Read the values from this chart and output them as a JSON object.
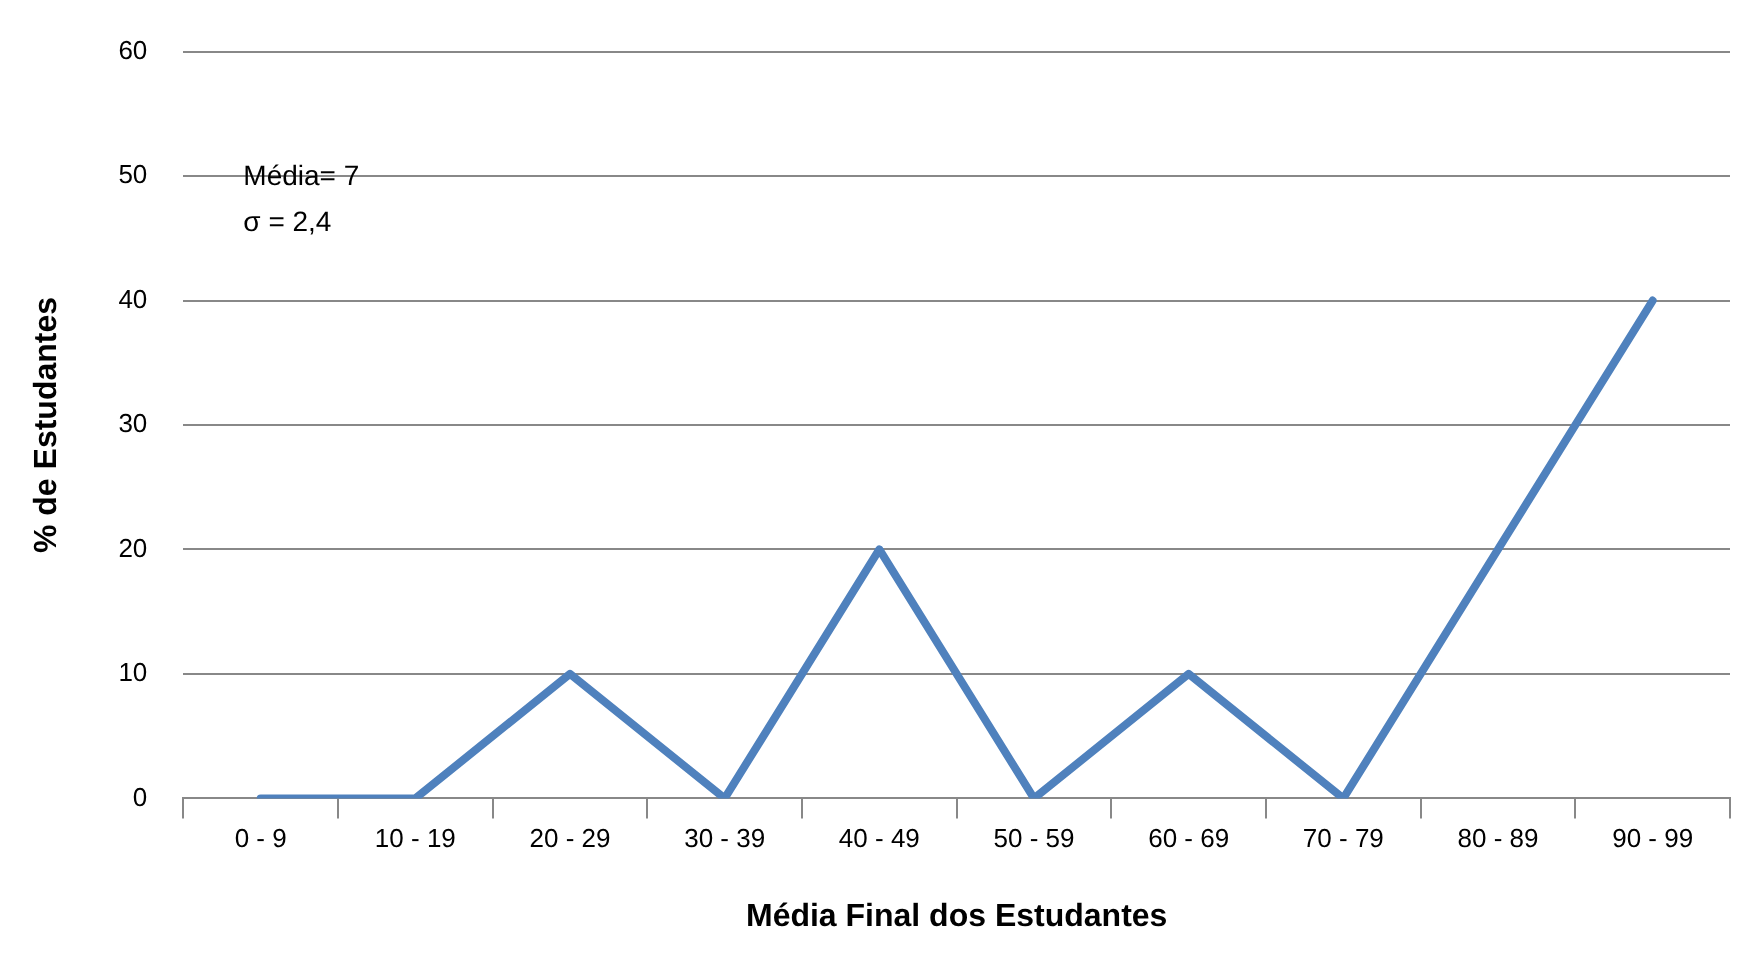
{
  "chart_data": {
    "type": "line",
    "xlabel": "Média Final dos Estudantes",
    "ylabel": "% de Estudantes",
    "categories": [
      "0 - 9",
      "10 - 19",
      "20 - 29",
      "30 - 39",
      "40 - 49",
      "50 - 59",
      "60 - 69",
      "70 - 79",
      "80 - 89",
      "90 - 99"
    ],
    "series": [
      {
        "color": "#4f81bd",
        "values": [
          0,
          0,
          10,
          0,
          20,
          0,
          10,
          0,
          20,
          40
        ]
      }
    ],
    "ylim": [
      0,
      60
    ],
    "yticks": [
      0,
      10,
      20,
      30,
      40,
      50,
      60
    ],
    "grid": "y",
    "legend": false,
    "marker": "none",
    "line_style": "solid",
    "annotations": [
      "Média= 7",
      "σ = 2,4"
    ]
  }
}
